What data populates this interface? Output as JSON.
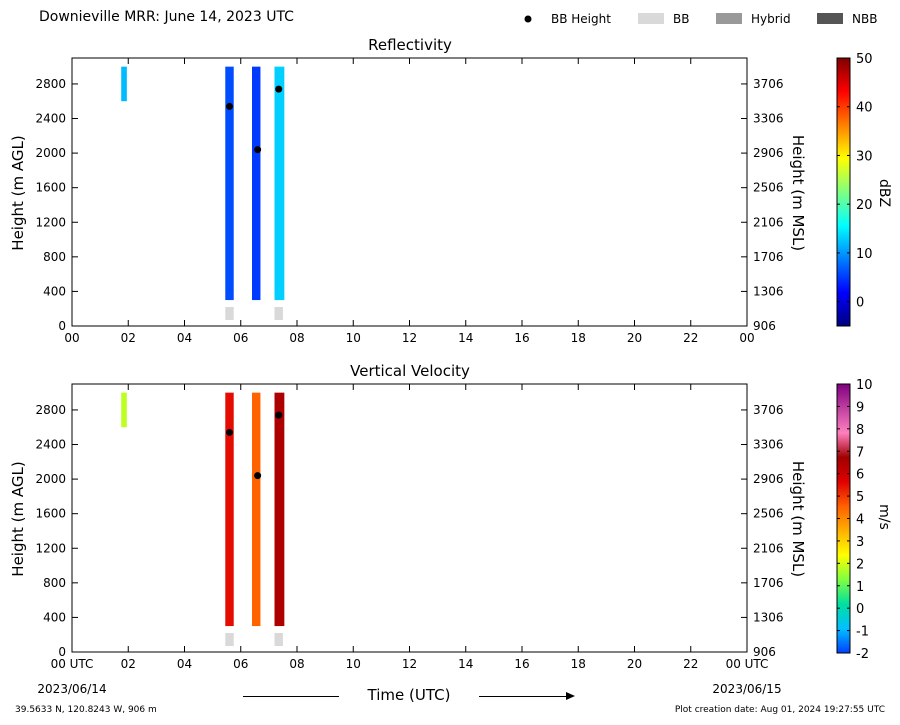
{
  "header": {
    "title": "Downieville MRR:  June 14, 2023 UTC",
    "legend": [
      {
        "label": "BB Height",
        "symbol": "dot",
        "color": "#000000"
      },
      {
        "label": "BB",
        "symbol": "box",
        "color": "#d9d9d9"
      },
      {
        "label": "Hybrid",
        "symbol": "box",
        "color": "#999999"
      },
      {
        "label": "NBB",
        "symbol": "box",
        "color": "#555555"
      }
    ]
  },
  "chart_data": [
    {
      "type": "heatmap",
      "title": "Reflectivity",
      "ylabel": "Height (m AGL)",
      "ylabel_right": "Height (m MSL)",
      "xlim": [
        0,
        24
      ],
      "ylim": [
        0,
        3100
      ],
      "x_ticks": [
        "00",
        "02",
        "04",
        "06",
        "08",
        "10",
        "12",
        "14",
        "16",
        "18",
        "20",
        "22",
        "00"
      ],
      "y_ticks": [
        "0",
        "400",
        "800",
        "1200",
        "1600",
        "2000",
        "2400",
        "2800"
      ],
      "y_ticks_right": [
        "906",
        "1306",
        "1706",
        "2106",
        "2506",
        "2906",
        "3306",
        "3706"
      ],
      "colorbar": {
        "label": "dBZ",
        "min": -5,
        "max": 50,
        "ticks": [
          "0",
          "10",
          "20",
          "30",
          "40",
          "50"
        ],
        "stops": [
          "#00007f",
          "#0000ff",
          "#0080ff",
          "#00ffff",
          "#80ff80",
          "#ffff00",
          "#ff8000",
          "#ff0000",
          "#7f0000"
        ]
      },
      "bb_height": [
        {
          "time": 5.6,
          "height": 2540
        },
        {
          "time": 6.6,
          "height": 2040
        },
        {
          "time": 7.35,
          "height": 2740
        }
      ],
      "bb_flags": [
        {
          "start": 5.45,
          "end": 5.75,
          "type": "BB"
        },
        {
          "start": 7.2,
          "end": 7.5,
          "type": "BB"
        }
      ],
      "echoes": [
        {
          "start": 1.75,
          "end": 1.95,
          "bottom": 2600,
          "top": 3000,
          "value": 12
        },
        {
          "start": 5.45,
          "end": 5.75,
          "bottom": 300,
          "top": 3000,
          "value": 6
        },
        {
          "start": 6.4,
          "end": 6.7,
          "bottom": 300,
          "top": 3000,
          "value": 5
        },
        {
          "start": 7.2,
          "end": 7.55,
          "bottom": 300,
          "top": 3000,
          "value": 13
        }
      ]
    },
    {
      "type": "heatmap",
      "title": "Vertical Velocity",
      "ylabel": "Height (m AGL)",
      "ylabel_right": "Height (m MSL)",
      "xlabel": "Time (UTC)",
      "xlim": [
        0,
        24
      ],
      "ylim": [
        0,
        3100
      ],
      "x_ticks": [
        "00 UTC",
        "02",
        "04",
        "06",
        "08",
        "10",
        "12",
        "14",
        "16",
        "18",
        "20",
        "22",
        "00 UTC"
      ],
      "x_dates": [
        "2023/06/14",
        "2023/06/15"
      ],
      "y_ticks": [
        "0",
        "400",
        "800",
        "1200",
        "1600",
        "2000",
        "2400",
        "2800"
      ],
      "y_ticks_right": [
        "906",
        "1306",
        "1706",
        "2106",
        "2506",
        "2906",
        "3306",
        "3706"
      ],
      "colorbar": {
        "label": "m/s",
        "min": -2,
        "max": 10,
        "ticks": [
          "-2",
          "-1",
          "0",
          "1",
          "2",
          "3",
          "4",
          "5",
          "6",
          "7",
          "8",
          "9",
          "10"
        ],
        "stops": [
          "#0040ff",
          "#00c0ff",
          "#00e0a0",
          "#80ff40",
          "#ffff00",
          "#ffb000",
          "#ff6000",
          "#e00000",
          "#a00000",
          "#ff80c0",
          "#c040a0",
          "#800080"
        ]
      },
      "bb_height": [
        {
          "time": 5.6,
          "height": 2540
        },
        {
          "time": 6.6,
          "height": 2040
        },
        {
          "time": 7.35,
          "height": 2740
        }
      ],
      "bb_flags": [
        {
          "start": 5.45,
          "end": 5.75,
          "type": "BB"
        },
        {
          "start": 7.2,
          "end": 7.5,
          "type": "BB"
        }
      ],
      "echoes": [
        {
          "start": 1.75,
          "end": 1.95,
          "bottom": 2600,
          "top": 3000,
          "value": 1.8
        },
        {
          "start": 5.45,
          "end": 5.75,
          "bottom": 300,
          "top": 3000,
          "value": 5.5
        },
        {
          "start": 6.4,
          "end": 6.7,
          "bottom": 300,
          "top": 3000,
          "value": 4.5
        },
        {
          "start": 7.2,
          "end": 7.55,
          "bottom": 300,
          "top": 3000,
          "value": 6.5
        }
      ]
    }
  ],
  "footer": {
    "location": "39.5633 N, 120.8243 W, 906 m",
    "creation": "Plot creation date: Aug 01, 2024 19:27:55 UTC"
  }
}
